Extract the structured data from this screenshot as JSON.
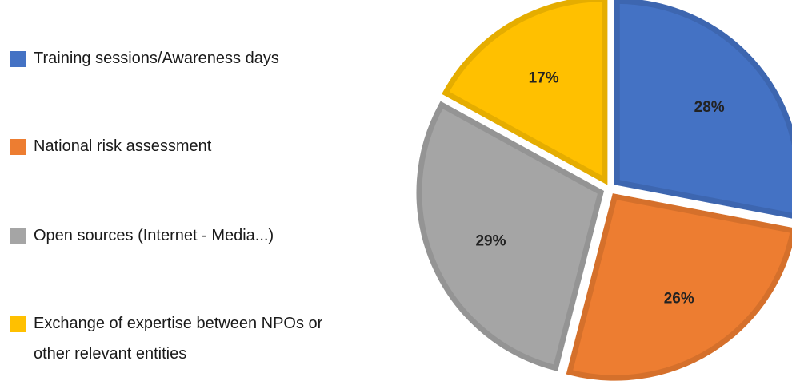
{
  "chart_data": {
    "type": "pie",
    "series": [
      {
        "values": [
          28,
          26,
          29,
          17
        ],
        "labels": [
          "28%",
          "26%",
          "29%",
          "17%"
        ]
      }
    ],
    "categories": [
      "Training sessions/Awareness days",
      "National risk assessment",
      "Open sources (Internet - Media...)",
      "Exchange of expertise between NPOs or other relevant entities"
    ],
    "colors": [
      "#4472c4",
      "#ed7d31",
      "#a5a5a5",
      "#ffc000"
    ],
    "border_colors": [
      "#3d66b0",
      "#d5702b",
      "#949494",
      "#e5ad00"
    ],
    "legend_placement": "left",
    "exploded": true
  }
}
